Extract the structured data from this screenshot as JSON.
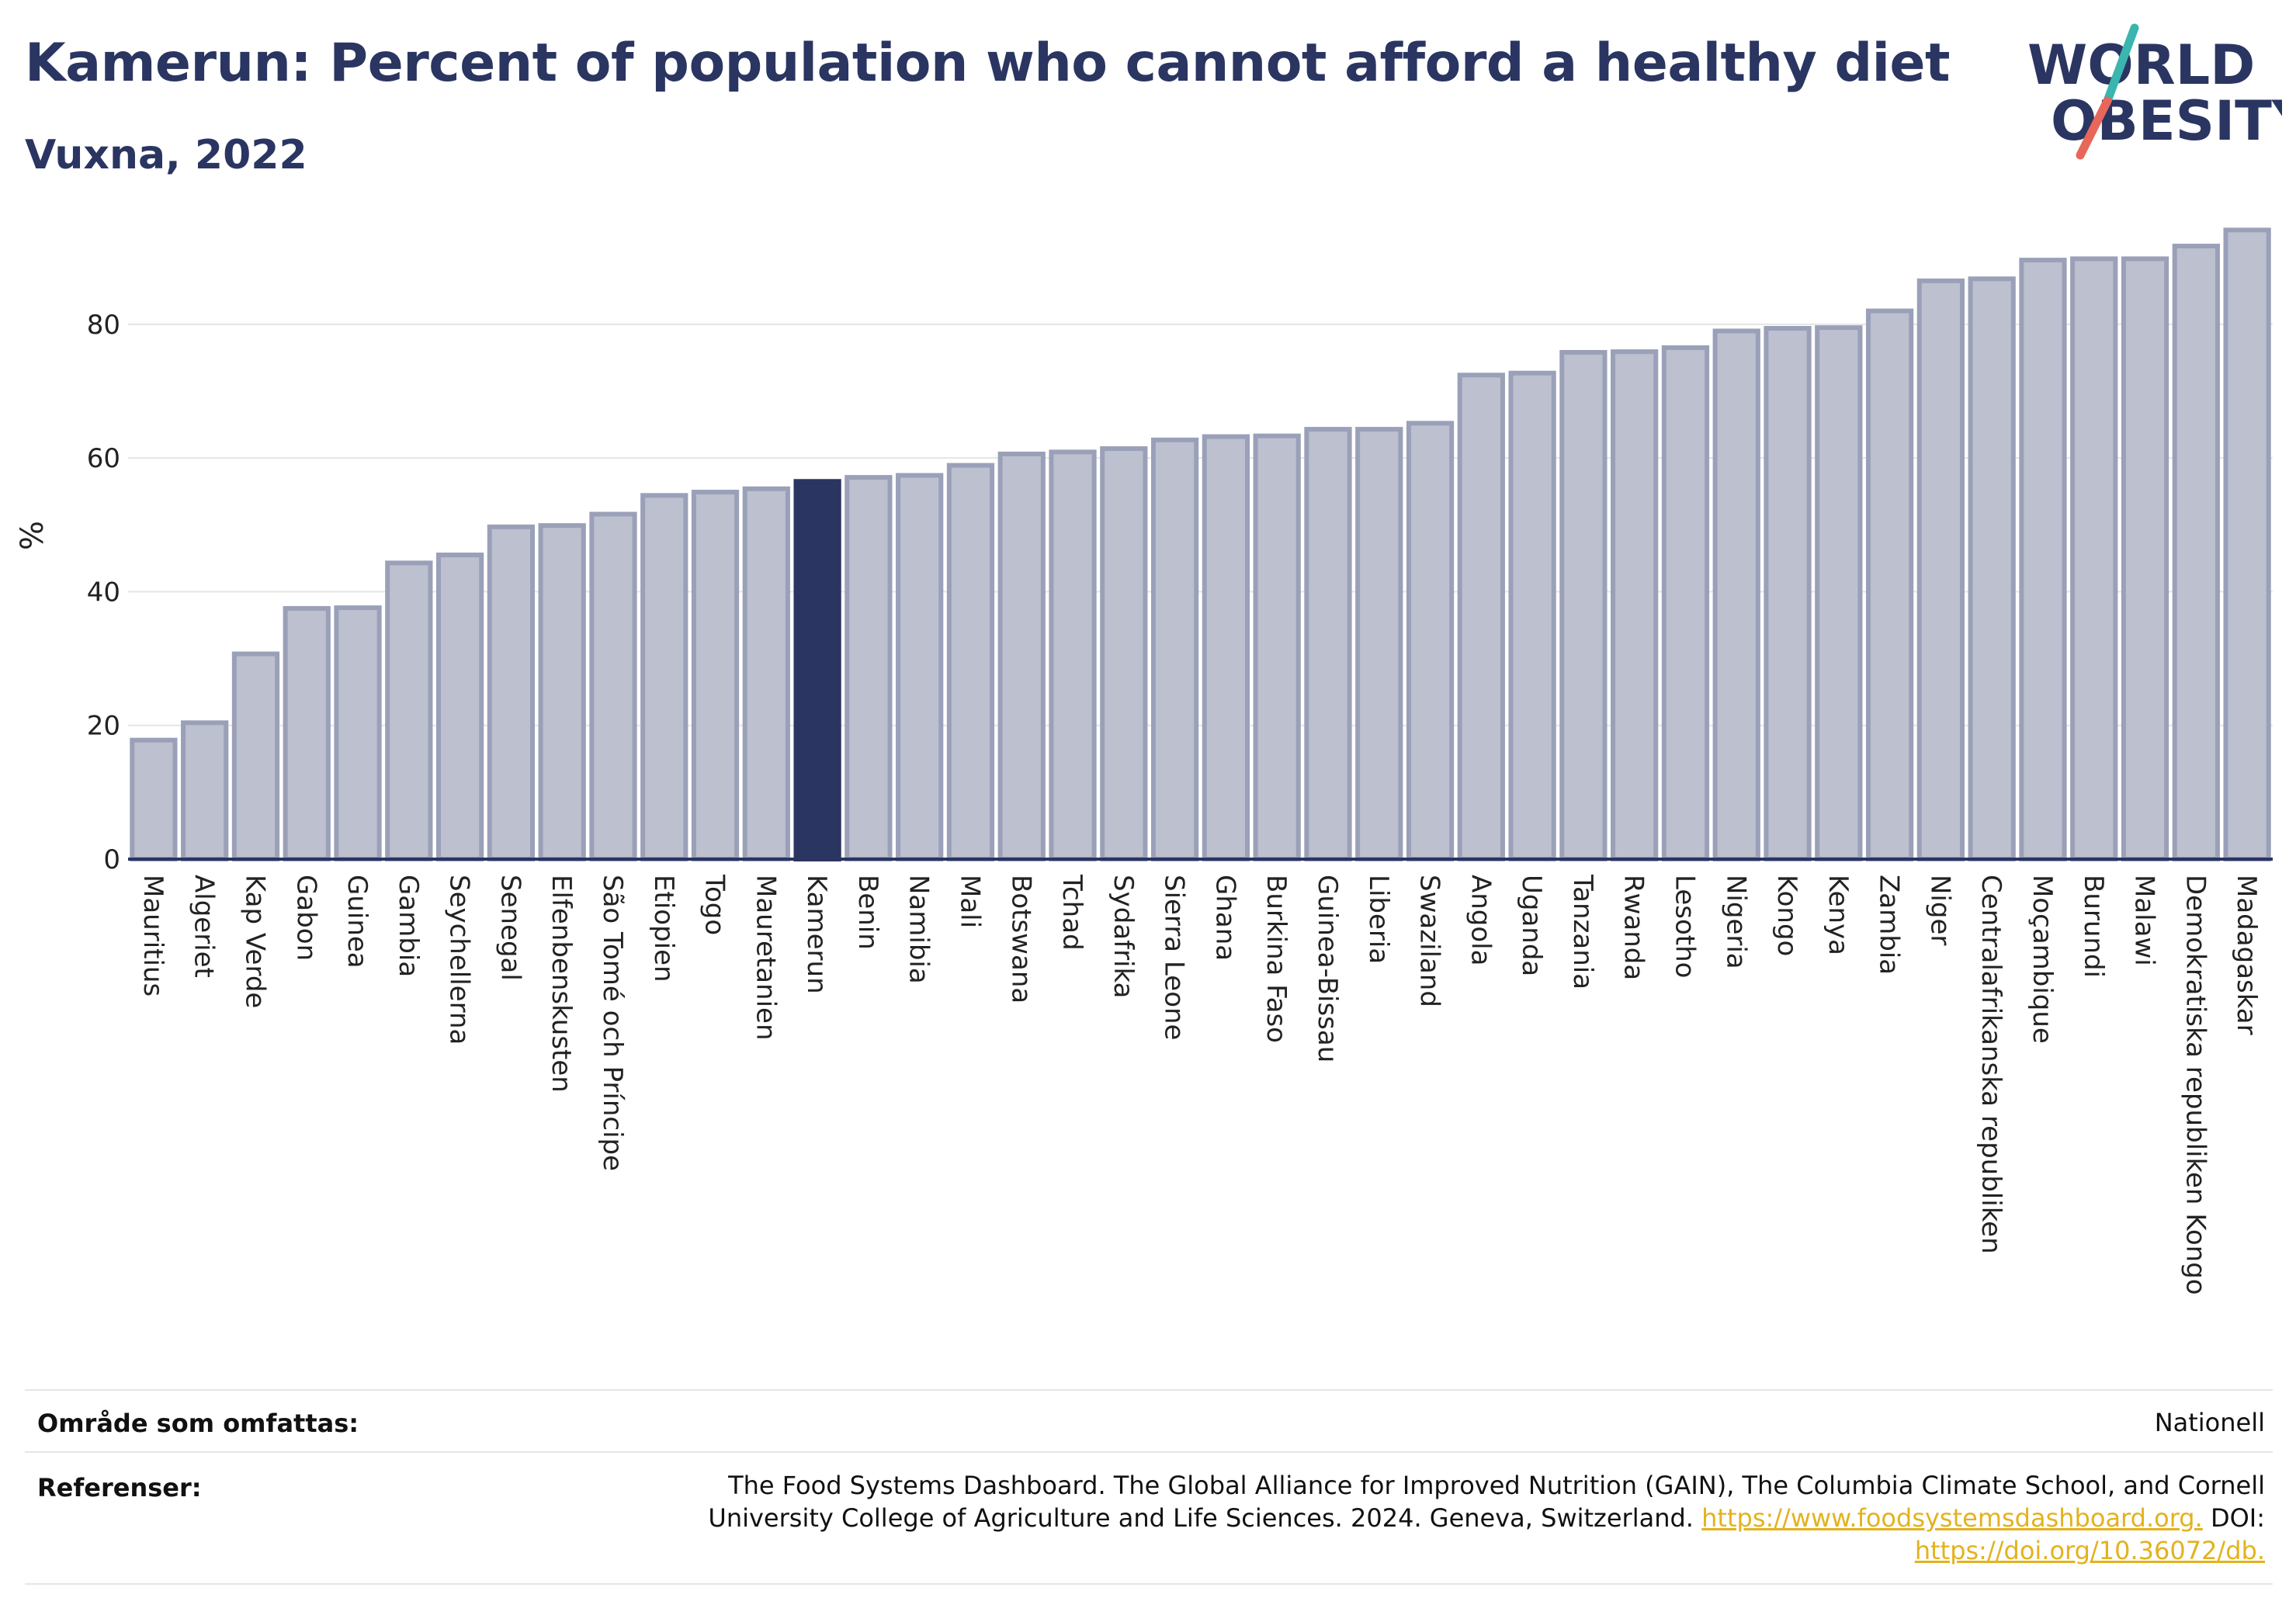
{
  "header": {
    "title": "Kamerun: Percent of population who cannot afford a healthy diet",
    "subtitle": "Vuxna, 2022"
  },
  "logo": {
    "line1": "WORLD",
    "line2": "OBESITY",
    "colors": {
      "text": "#2a3561",
      "slash_top": "#3ab5b0",
      "slash_bottom": "#e8675a"
    }
  },
  "chart_data": {
    "type": "bar",
    "ylabel": "%",
    "xlabel": "",
    "ylim": [
      0,
      96
    ],
    "yticks": [
      0,
      20,
      40,
      60,
      80
    ],
    "grid": true,
    "highlight": "Kamerun",
    "colors": {
      "bar": "#bcc0cf",
      "bar_border": "#9aa0b8",
      "highlight": "#2a3561",
      "axis": "#2a3561",
      "grid": "#e5e5e5"
    },
    "categories": [
      "Mauritius",
      "Algeriet",
      "Kap Verde",
      "Gabon",
      "Guinea",
      "Gambia",
      "Seychellerna",
      "Senegal",
      "Elfenbenskusten",
      "São Tomé och Príncipe",
      "Etiopien",
      "Togo",
      "Mauretanien",
      "Kamerun",
      "Benin",
      "Namibia",
      "Mali",
      "Botswana",
      "Tchad",
      "Sydafrika",
      "Sierra Leone",
      "Ghana",
      "Burkina Faso",
      "Guinea-Bissau",
      "Liberia",
      "Swaziland",
      "Angola",
      "Uganda",
      "Tanzania",
      "Rwanda",
      "Lesotho",
      "Nigeria",
      "Kongo",
      "Kenya",
      "Zambia",
      "Niger",
      "Centralafrikanska republiken",
      "Moçambique",
      "Burundi",
      "Malawi",
      "Demokratiska republiken Kongo",
      "Madagaskar"
    ],
    "values": [
      17.8,
      20.4,
      30.7,
      37.5,
      37.6,
      44.3,
      45.5,
      49.7,
      49.9,
      51.6,
      54.4,
      54.9,
      55.4,
      56.5,
      57.1,
      57.4,
      58.9,
      60.6,
      60.9,
      61.4,
      62.7,
      63.2,
      63.3,
      64.3,
      64.3,
      65.2,
      72.4,
      72.7,
      75.8,
      75.9,
      76.5,
      79.0,
      79.4,
      79.5,
      82.0,
      86.5,
      86.8,
      89.6,
      89.8,
      89.8,
      91.7,
      94.1
    ]
  },
  "meta": {
    "coverage_label": "Område som omfattas:",
    "coverage_value": "Nationell",
    "references_label": "Referenser:",
    "references_text": "The Food Systems Dashboard. The Global Alliance for Improved Nutrition (GAIN), The Columbia Climate School, and Cornell University College of Agriculture and Life Sciences. 2024. Geneva, Switzerland.",
    "references_link1": "https://www.foodsystemsdashboard.org.",
    "references_doi_label": "DOI:",
    "references_link2": "https://doi.org/10.36072/db."
  }
}
